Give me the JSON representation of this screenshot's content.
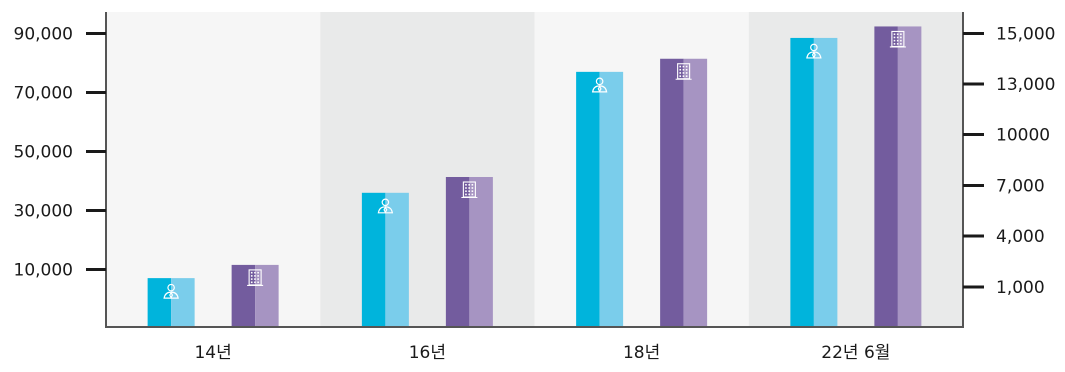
{
  "chart_data": {
    "type": "bar",
    "categories": [
      "14년",
      "16년",
      "18년",
      "22년 6월"
    ],
    "series": [
      {
        "axis": "left",
        "icon": "person-icon",
        "color": "#00B4DC",
        "color_light": "#7ACDEB",
        "values": [
          8500,
          36000,
          77000,
          88500
        ]
      },
      {
        "axis": "right",
        "icon": "building-icon",
        "color": "#735C9E",
        "color_light": "#A694C2",
        "values": [
          2300,
          7500,
          14000,
          15300
        ]
      }
    ],
    "y_left": {
      "ticks": [
        10000,
        30000,
        50000,
        70000,
        90000
      ],
      "tick_labels": [
        "10,000",
        "30,000",
        "50,000",
        "70,000",
        "90,000"
      ]
    },
    "y_right": {
      "ticks": [
        1000,
        4000,
        7000,
        10000,
        13000,
        15000
      ],
      "tick_labels": [
        "1,000",
        "4,000",
        "7,000",
        "10000",
        "13,000",
        "15,000"
      ]
    },
    "band_colors": [
      "#F6F6F6",
      "#E9EAEA",
      "#F6F6F6",
      "#E9EAEA"
    ],
    "axis_color": "#555555",
    "grid": false
  }
}
